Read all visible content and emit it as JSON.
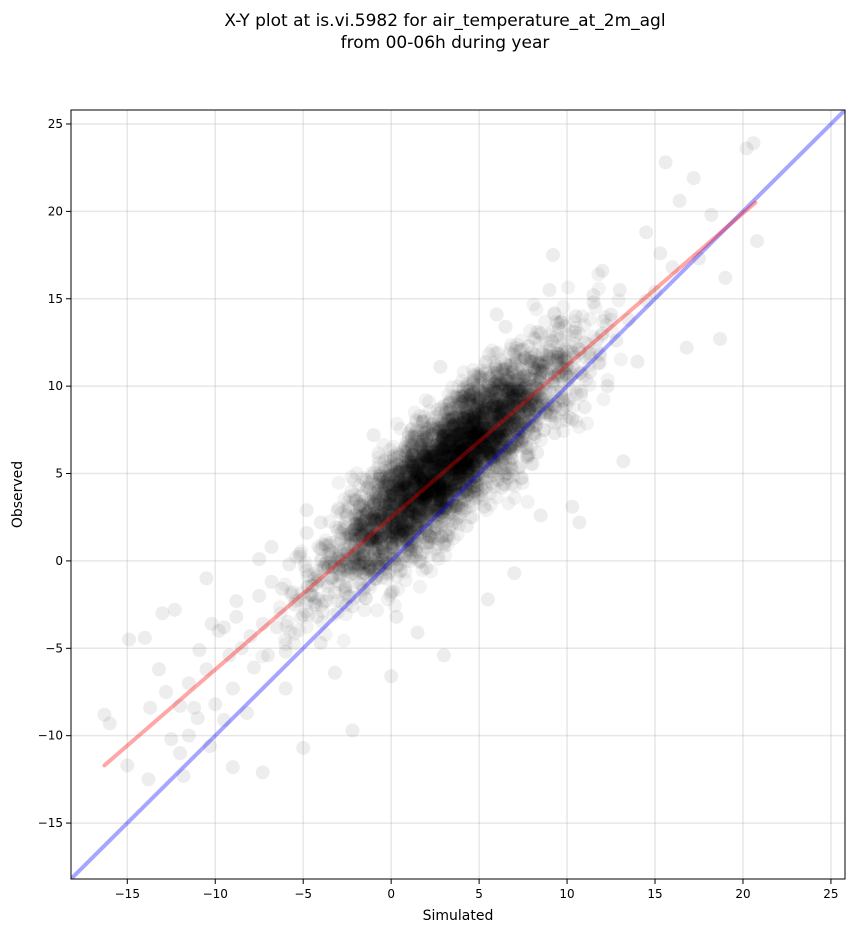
{
  "chart_data": {
    "type": "scatter",
    "title_line1": "X-Y plot at is.vi.5982 for air_temperature_at_2m_agl",
    "title_line2": "from 00-06h during year",
    "xlabel": "Simulated",
    "ylabel": "Observed",
    "xlim": [
      -18.2,
      25.8
    ],
    "ylim": [
      -18.2,
      25.8
    ],
    "x_ticks": [
      -15,
      -10,
      -5,
      0,
      5,
      10,
      15,
      20,
      25
    ],
    "y_ticks": [
      -15,
      -10,
      -5,
      0,
      5,
      10,
      15,
      20,
      25
    ],
    "x_tick_labels": [
      "−15",
      "−10",
      "−5",
      "0",
      "5",
      "10",
      "15",
      "20",
      "25"
    ],
    "y_tick_labels": [
      "−15",
      "−10",
      "−5",
      "0",
      "5",
      "10",
      "15",
      "20",
      "25"
    ],
    "grid": true,
    "point_color": "#000000",
    "point_alpha": 0.07,
    "lines": [
      {
        "kind": "one-to-one",
        "color": "#0000ff",
        "alpha": 0.35,
        "x": [
          -18.2,
          25.8
        ],
        "y": [
          -18.2,
          25.8
        ]
      },
      {
        "kind": "regression-fit",
        "color": "#ff0000",
        "alpha": 0.35,
        "x": [
          -16.3,
          20.7
        ],
        "y": [
          -11.7,
          20.5
        ]
      }
    ],
    "sample_points": {
      "x": [
        -16.3,
        -16.0,
        -14.9,
        -14.0,
        -13.7,
        -13.2,
        -12.8,
        -12.5,
        -12.0,
        -11.8,
        -11.5,
        -11.2,
        -11.0,
        -10.9,
        -10.5,
        -10.3,
        -10.2,
        -10.0,
        -9.8,
        -9.5,
        -9.2,
        -9.0,
        -8.8,
        -8.5,
        -8.2,
        -8.0,
        -7.8,
        -7.5,
        -7.3,
        -7.0,
        -6.8,
        -6.5,
        -6.2,
        -6.0,
        -5.8,
        -5.5,
        -5.2,
        -5.0,
        -4.8,
        -4.5,
        -4.2,
        -4.0,
        -3.8,
        -3.5,
        -3.2,
        -3.0,
        -2.8,
        -2.5,
        -2.2,
        -2.0,
        -1.8,
        -1.5,
        -1.2,
        -1.0,
        -0.8,
        -0.5,
        -0.2,
        0.0,
        0.3,
        0.5,
        0.8,
        1.0,
        1.3,
        1.5,
        1.8,
        2.0,
        2.3,
        2.5,
        2.8,
        3.0,
        3.3,
        3.5,
        3.8,
        4.0,
        4.3,
        4.5,
        4.8,
        5.0,
        5.3,
        5.5,
        5.8,
        6.0,
        6.3,
        6.5,
        6.8,
        7.0,
        7.3,
        7.5,
        7.8,
        8.0,
        8.3,
        8.5,
        8.8,
        9.0,
        9.3,
        9.5,
        9.8,
        10.0,
        10.3,
        10.5,
        10.8,
        11.0,
        11.3,
        11.5,
        11.8,
        12.0,
        12.3,
        12.5,
        12.8,
        13.0,
        13.5,
        14.0,
        14.5,
        15.0,
        15.3,
        15.6,
        16.0,
        16.4,
        17.2,
        17.5,
        18.2,
        18.7,
        19.0,
        20.2,
        20.6,
        20.8,
        -13.8,
        -12.0,
        -9.0,
        -7.3,
        -5.0,
        -2.2,
        0.0,
        1.5,
        3.0,
        5.5,
        7.0,
        8.5,
        10.3,
        10.7,
        13.2,
        16.8,
        -13.0,
        -10.5,
        -7.5,
        -4.8,
        -1.0,
        2.8,
        6.0,
        9.2,
        12.0,
        14.5,
        -15.0,
        -11.5,
        -8.8,
        -6.0,
        -3.2,
        0.3,
        2.0,
        4.5,
        7.8,
        11.5,
        -12.3,
        -9.5,
        -6.8,
        -4.0,
        -1.5,
        1.0,
        3.5,
        6.5,
        9.0,
        11.0
      ],
      "y": [
        -8.8,
        -9.3,
        -4.5,
        -4.4,
        -8.4,
        -6.2,
        -7.5,
        -10.2,
        -8.3,
        -12.3,
        -7.0,
        -8.4,
        -9.0,
        -5.1,
        -6.2,
        -10.6,
        -3.6,
        -8.2,
        -4.0,
        -9.1,
        -5.4,
        -7.3,
        -2.3,
        -5.0,
        -8.7,
        -4.3,
        -6.1,
        -2.0,
        -3.6,
        -5.4,
        -1.2,
        -3.8,
        -1.6,
        -5.2,
        -0.2,
        -2.5,
        0.4,
        -3.1,
        1.6,
        -1.4,
        -3.2,
        2.2,
        -0.4,
        0.6,
        -1.8,
        3.0,
        -0.3,
        1.5,
        -2.6,
        3.5,
        -0.2,
        2.3,
        4.1,
        -0.5,
        0.7,
        4.5,
        1.5,
        -1.8,
        3.2,
        5.2,
        0.3,
        2.7,
        6.0,
        1.4,
        4.1,
        -0.4,
        5.9,
        2.6,
        7.2,
        1.0,
        4.6,
        8.2,
        3.2,
        6.3,
        2.0,
        9.5,
        4.8,
        7.0,
        3.1,
        10.0,
        5.7,
        8.2,
        4.2,
        11.0,
        6.6,
        9.0,
        5.4,
        12.1,
        7.6,
        10.0,
        6.2,
        13.0,
        8.5,
        11.0,
        7.3,
        13.6,
        9.2,
        11.6,
        8.1,
        14.0,
        9.5,
        12.5,
        10.8,
        15.2,
        11.3,
        13.0,
        10.0,
        14.1,
        12.6,
        15.5,
        13.8,
        11.4,
        14.9,
        15.4,
        17.6,
        22.8,
        16.8,
        20.6,
        21.9,
        17.3,
        19.8,
        12.7,
        16.2,
        23.6,
        23.9,
        18.3,
        -12.5,
        -11.0,
        -11.8,
        -12.1,
        -10.7,
        -9.7,
        -6.6,
        -4.1,
        -5.4,
        -2.2,
        -0.7,
        2.6,
        3.1,
        2.2,
        5.7,
        12.2,
        -3.0,
        -1.0,
        0.1,
        2.9,
        7.2,
        11.1,
        14.1,
        17.5,
        16.6,
        18.8,
        -11.7,
        -10.0,
        -3.2,
        -7.3,
        -6.4,
        -3.2,
        7.0,
        9.8,
        12.3,
        14.8,
        -2.8,
        -3.8,
        0.8,
        -4.7,
        1.9,
        5.0,
        6.5,
        13.4,
        15.5,
        8.8
      ]
    }
  }
}
